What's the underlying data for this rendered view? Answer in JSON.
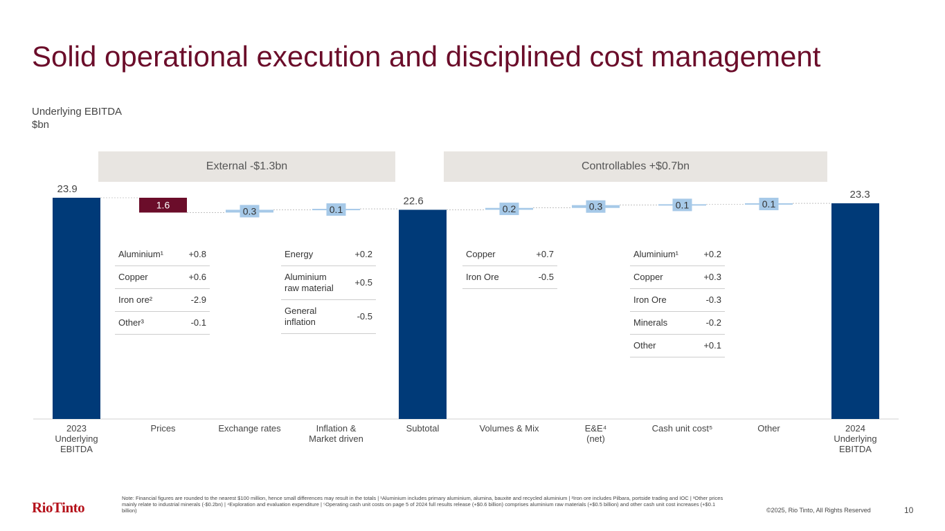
{
  "title": "Solid operational execution and disciplined cost management",
  "chart_data": {
    "type": "waterfall",
    "subtitle": "Underlying EBITDA",
    "unit": "$bn",
    "categories": [
      "2023\nUnderlying\nEBITDA",
      "Prices",
      "Exchange rates",
      "Inflation &\nMarket driven",
      "Subtotal",
      "Volumes & Mix",
      "E&E⁴\n(net)",
      "Cash unit cost⁵",
      "Other",
      "2024\nUnderlying\nEBITDA"
    ],
    "values": [
      23.9,
      -1.6,
      0.3,
      0.1,
      22.6,
      0.2,
      0.3,
      0.1,
      0.1,
      23.3
    ],
    "value_labels": [
      "23.9",
      "1.6",
      "0.3",
      "0.1",
      "22.6",
      "0.2",
      "0.3",
      "0.1",
      "0.1",
      "23.3"
    ],
    "measures": [
      "total",
      "relative",
      "relative",
      "relative",
      "total",
      "relative",
      "relative",
      "relative",
      "relative",
      "total"
    ],
    "colors": {
      "total": "#003a78",
      "decrease": "#6b0d2a",
      "increase": "#a6c9e8"
    },
    "groups": [
      "External -$1.3bn",
      "Controllables +$0.7bn"
    ]
  },
  "tables": [
    {
      "rows": [
        [
          "Aluminium¹",
          "+0.8"
        ],
        [
          "Copper",
          "+0.6"
        ],
        [
          "Iron ore²",
          "-2.9"
        ],
        [
          "Other³",
          "-0.1"
        ]
      ]
    },
    {
      "rows": [
        [
          "Energy",
          "+0.2"
        ],
        [
          "Aluminium\nraw material",
          "+0.5"
        ],
        [
          "General\ninflation",
          "-0.5"
        ]
      ]
    },
    {
      "rows": [
        [
          "Copper",
          "+0.7"
        ],
        [
          "Iron Ore",
          "-0.5"
        ]
      ]
    },
    {
      "rows": [
        [
          "Aluminium¹",
          "+0.2"
        ],
        [
          "Copper",
          "+0.3"
        ],
        [
          "Iron Ore",
          "-0.3"
        ],
        [
          "Minerals",
          "-0.2"
        ],
        [
          "Other",
          "+0.1"
        ]
      ]
    }
  ],
  "footnote": "Note: Financial figures are rounded to the nearest $100 million, hence small differences may result in the totals | ¹Aluminium includes primary aluminium, alumina, bauxite and recycled aluminium | ²Iron ore includes Pilbara, portside trading and IOC | ³Other prices mainly relate to industrial minerals (-$0.2bn) | ⁴Exploration and evaluation expenditure | ⁵Operating cash unit costs on page 5 of 2024 full results release (+$0.6 billion) comprises aluminium raw materials (+$0.5 billion) and other cash unit cost increases (+$0.1 billion)",
  "logo": "RioTinto",
  "copyright": "©2025, Rio Tinto, All Rights Reserved",
  "page_number": "10"
}
